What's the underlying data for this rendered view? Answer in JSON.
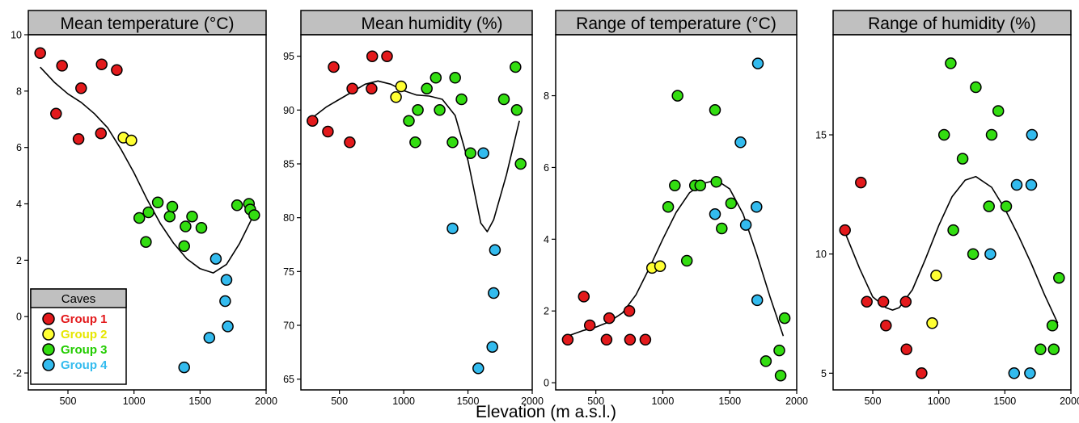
{
  "figure": {
    "xlabel": "Elevation (m a.s.l.)",
    "legend": {
      "title": "Caves",
      "entries": [
        {
          "label": "Group 1",
          "color": "#e31a1c"
        },
        {
          "label": "Group 2",
          "color": "#ffff33"
        },
        {
          "label": "Group 3",
          "color": "#33dd11"
        },
        {
          "label": "Group 4",
          "color": "#33bbee"
        }
      ]
    }
  },
  "colors": {
    "g1": "#e31a1c",
    "g2": "#ffff33",
    "g3": "#33dd11",
    "g4": "#33bbee",
    "header": "#c0c0c0",
    "smooth_line": "#000000"
  },
  "chart_data": [
    {
      "type": "scatter",
      "title": "Mean temperature (°C)",
      "xlabel": "Elevation (m a.s.l.)",
      "xlim": [
        200,
        2000
      ],
      "ylim": [
        -2.6,
        10
      ],
      "xticks": [
        500,
        1000,
        1500,
        2000
      ],
      "xtick_labels": [
        "500",
        "1000",
        "1500",
        "2000"
      ],
      "yticks": [
        -2,
        0,
        2,
        4,
        6,
        8,
        10
      ],
      "ytick_labels": [
        "-2",
        "0",
        "2",
        "4",
        "6",
        "8",
        "10"
      ],
      "points": [
        {
          "x": 290,
          "y": 9.35,
          "group": "g1"
        },
        {
          "x": 410,
          "y": 7.2,
          "group": "g1"
        },
        {
          "x": 455,
          "y": 8.9,
          "group": "g1"
        },
        {
          "x": 580,
          "y": 6.3,
          "group": "g1"
        },
        {
          "x": 600,
          "y": 8.1,
          "group": "g1"
        },
        {
          "x": 750,
          "y": 6.5,
          "group": "g1"
        },
        {
          "x": 755,
          "y": 8.95,
          "group": "g1"
        },
        {
          "x": 870,
          "y": 8.75,
          "group": "g1"
        },
        {
          "x": 920,
          "y": 6.35,
          "group": "g2"
        },
        {
          "x": 980,
          "y": 6.25,
          "group": "g2"
        },
        {
          "x": 1040,
          "y": 3.5,
          "group": "g3"
        },
        {
          "x": 1090,
          "y": 2.65,
          "group": "g3"
        },
        {
          "x": 1110,
          "y": 3.7,
          "group": "g3"
        },
        {
          "x": 1180,
          "y": 4.05,
          "group": "g3"
        },
        {
          "x": 1270,
          "y": 3.55,
          "group": "g3"
        },
        {
          "x": 1290,
          "y": 3.9,
          "group": "g3"
        },
        {
          "x": 1380,
          "y": 2.5,
          "group": "g3"
        },
        {
          "x": 1390,
          "y": 3.2,
          "group": "g3"
        },
        {
          "x": 1440,
          "y": 3.55,
          "group": "g3"
        },
        {
          "x": 1510,
          "y": 3.15,
          "group": "g3"
        },
        {
          "x": 1780,
          "y": 3.95,
          "group": "g3"
        },
        {
          "x": 1870,
          "y": 4.0,
          "group": "g3"
        },
        {
          "x": 1880,
          "y": 3.8,
          "group": "g3"
        },
        {
          "x": 1910,
          "y": 3.6,
          "group": "g3"
        },
        {
          "x": 1380,
          "y": -1.8,
          "group": "g4"
        },
        {
          "x": 1570,
          "y": -0.75,
          "group": "g4"
        },
        {
          "x": 1620,
          "y": 2.05,
          "group": "g4"
        },
        {
          "x": 1690,
          "y": 0.55,
          "group": "g4"
        },
        {
          "x": 1700,
          "y": 1.3,
          "group": "g4"
        },
        {
          "x": 1710,
          "y": -0.35,
          "group": "g4"
        }
      ],
      "smooth": [
        [
          290,
          8.85
        ],
        [
          400,
          8.3
        ],
        [
          500,
          7.9
        ],
        [
          600,
          7.6
        ],
        [
          700,
          7.2
        ],
        [
          800,
          6.7
        ],
        [
          900,
          5.95
        ],
        [
          1000,
          5.1
        ],
        [
          1100,
          4.15
        ],
        [
          1200,
          3.3
        ],
        [
          1300,
          2.6
        ],
        [
          1400,
          2.05
        ],
        [
          1500,
          1.7
        ],
        [
          1600,
          1.55
        ],
        [
          1700,
          1.85
        ],
        [
          1800,
          2.6
        ],
        [
          1900,
          3.55
        ]
      ]
    },
    {
      "type": "scatter",
      "title": "Mean humidity (%)",
      "xlabel": "Elevation (m a.s.l.)",
      "xlim": [
        200,
        2000
      ],
      "ylim": [
        64,
        97
      ],
      "xticks": [
        500,
        1000,
        1500,
        2000
      ],
      "xtick_labels": [
        "500",
        "1000",
        "1500",
        "2000"
      ],
      "yticks": [
        65,
        70,
        75,
        80,
        85,
        90,
        95
      ],
      "ytick_labels": [
        "65",
        "70",
        "75",
        "80",
        "85",
        "90",
        "95"
      ],
      "points": [
        {
          "x": 290,
          "y": 89,
          "group": "g1"
        },
        {
          "x": 410,
          "y": 88,
          "group": "g1"
        },
        {
          "x": 455,
          "y": 94,
          "group": "g1"
        },
        {
          "x": 580,
          "y": 87,
          "group": "g1"
        },
        {
          "x": 600,
          "y": 92,
          "group": "g1"
        },
        {
          "x": 750,
          "y": 92,
          "group": "g1"
        },
        {
          "x": 755,
          "y": 95,
          "group": "g1"
        },
        {
          "x": 870,
          "y": 95,
          "group": "g1"
        },
        {
          "x": 940,
          "y": 91.2,
          "group": "g2"
        },
        {
          "x": 980,
          "y": 92.2,
          "group": "g2"
        },
        {
          "x": 1040,
          "y": 89,
          "group": "g3"
        },
        {
          "x": 1090,
          "y": 87,
          "group": "g3"
        },
        {
          "x": 1110,
          "y": 90,
          "group": "g3"
        },
        {
          "x": 1180,
          "y": 92,
          "group": "g3"
        },
        {
          "x": 1250,
          "y": 93,
          "group": "g3"
        },
        {
          "x": 1280,
          "y": 90,
          "group": "g3"
        },
        {
          "x": 1380,
          "y": 87,
          "group": "g3"
        },
        {
          "x": 1400,
          "y": 93,
          "group": "g3"
        },
        {
          "x": 1450,
          "y": 91,
          "group": "g3"
        },
        {
          "x": 1520,
          "y": 86,
          "group": "g3"
        },
        {
          "x": 1780,
          "y": 91,
          "group": "g3"
        },
        {
          "x": 1870,
          "y": 94,
          "group": "g3"
        },
        {
          "x": 1880,
          "y": 90,
          "group": "g3"
        },
        {
          "x": 1910,
          "y": 85,
          "group": "g3"
        },
        {
          "x": 1380,
          "y": 79,
          "group": "g4"
        },
        {
          "x": 1580,
          "y": 66,
          "group": "g4"
        },
        {
          "x": 1620,
          "y": 86,
          "group": "g4"
        },
        {
          "x": 1690,
          "y": 68,
          "group": "g4"
        },
        {
          "x": 1700,
          "y": 73,
          "group": "g4"
        },
        {
          "x": 1710,
          "y": 77,
          "group": "g4"
        }
      ],
      "smooth": [
        [
          290,
          89.3
        ],
        [
          400,
          90.3
        ],
        [
          500,
          91.0
        ],
        [
          600,
          91.7
        ],
        [
          700,
          92.4
        ],
        [
          800,
          92.7
        ],
        [
          900,
          92.4
        ],
        [
          1000,
          91.8
        ],
        [
          1100,
          91.4
        ],
        [
          1200,
          91.3
        ],
        [
          1300,
          91.0
        ],
        [
          1400,
          89.5
        ],
        [
          1500,
          85.3
        ],
        [
          1600,
          79.5
        ],
        [
          1650,
          78.7
        ],
        [
          1700,
          79.8
        ],
        [
          1800,
          84.0
        ],
        [
          1900,
          89.0
        ]
      ]
    },
    {
      "type": "scatter",
      "title": "Range of temperature (°C)",
      "xlabel": "Elevation (m a.s.l.)",
      "xlim": [
        200,
        2000
      ],
      "ylim": [
        -0.2,
        9.7
      ],
      "xticks": [
        500,
        1000,
        1500,
        2000
      ],
      "xtick_labels": [
        "500",
        "1000",
        "1500",
        "2000"
      ],
      "yticks": [
        0,
        2,
        4,
        6,
        8
      ],
      "ytick_labels": [
        "0",
        "2",
        "4",
        "6",
        "8"
      ],
      "points": [
        {
          "x": 290,
          "y": 1.2,
          "group": "g1"
        },
        {
          "x": 410,
          "y": 2.4,
          "group": "g1"
        },
        {
          "x": 455,
          "y": 1.6,
          "group": "g1"
        },
        {
          "x": 580,
          "y": 1.2,
          "group": "g1"
        },
        {
          "x": 600,
          "y": 1.8,
          "group": "g1"
        },
        {
          "x": 750,
          "y": 2.0,
          "group": "g1"
        },
        {
          "x": 755,
          "y": 1.2,
          "group": "g1"
        },
        {
          "x": 870,
          "y": 1.2,
          "group": "g1"
        },
        {
          "x": 920,
          "y": 3.2,
          "group": "g2"
        },
        {
          "x": 980,
          "y": 3.25,
          "group": "g2"
        },
        {
          "x": 1040,
          "y": 4.9,
          "group": "g3"
        },
        {
          "x": 1090,
          "y": 5.5,
          "group": "g3"
        },
        {
          "x": 1110,
          "y": 8.0,
          "group": "g3"
        },
        {
          "x": 1180,
          "y": 3.4,
          "group": "g3"
        },
        {
          "x": 1240,
          "y": 5.5,
          "group": "g3"
        },
        {
          "x": 1280,
          "y": 5.5,
          "group": "g3"
        },
        {
          "x": 1390,
          "y": 7.6,
          "group": "g3"
        },
        {
          "x": 1400,
          "y": 5.6,
          "group": "g3"
        },
        {
          "x": 1440,
          "y": 4.3,
          "group": "g3"
        },
        {
          "x": 1510,
          "y": 5.0,
          "group": "g3"
        },
        {
          "x": 1770,
          "y": 0.6,
          "group": "g3"
        },
        {
          "x": 1870,
          "y": 0.9,
          "group": "g3"
        },
        {
          "x": 1880,
          "y": 0.2,
          "group": "g3"
        },
        {
          "x": 1910,
          "y": 1.8,
          "group": "g3"
        },
        {
          "x": 1390,
          "y": 4.7,
          "group": "g4"
        },
        {
          "x": 1580,
          "y": 6.7,
          "group": "g4"
        },
        {
          "x": 1620,
          "y": 4.4,
          "group": "g4"
        },
        {
          "x": 1700,
          "y": 4.9,
          "group": "g4"
        },
        {
          "x": 1705,
          "y": 2.3,
          "group": "g4"
        },
        {
          "x": 1710,
          "y": 8.9,
          "group": "g4"
        }
      ],
      "smooth": [
        [
          290,
          1.3
        ],
        [
          400,
          1.45
        ],
        [
          500,
          1.55
        ],
        [
          600,
          1.7
        ],
        [
          700,
          1.95
        ],
        [
          800,
          2.45
        ],
        [
          900,
          3.2
        ],
        [
          1000,
          4.0
        ],
        [
          1100,
          4.75
        ],
        [
          1200,
          5.3
        ],
        [
          1300,
          5.55
        ],
        [
          1400,
          5.65
        ],
        [
          1500,
          5.4
        ],
        [
          1600,
          4.7
        ],
        [
          1700,
          3.6
        ],
        [
          1800,
          2.4
        ],
        [
          1900,
          1.3
        ]
      ]
    },
    {
      "type": "scatter",
      "title": "Range of humidity (%)",
      "xlabel": "Elevation (m a.s.l.)",
      "xlim": [
        200,
        2000
      ],
      "ylim": [
        4.3,
        19.2
      ],
      "xticks": [
        500,
        1000,
        1500,
        2000
      ],
      "xtick_labels": [
        "500",
        "1000",
        "1500",
        "2000"
      ],
      "yticks": [
        5,
        10,
        15
      ],
      "ytick_labels": [
        "5",
        "10",
        "15"
      ],
      "points": [
        {
          "x": 290,
          "y": 11,
          "group": "g1"
        },
        {
          "x": 410,
          "y": 13,
          "group": "g1"
        },
        {
          "x": 455,
          "y": 8,
          "group": "g1"
        },
        {
          "x": 580,
          "y": 8,
          "group": "g1"
        },
        {
          "x": 600,
          "y": 7,
          "group": "g1"
        },
        {
          "x": 750,
          "y": 8,
          "group": "g1"
        },
        {
          "x": 755,
          "y": 6,
          "group": "g1"
        },
        {
          "x": 870,
          "y": 5,
          "group": "g1"
        },
        {
          "x": 950,
          "y": 7.1,
          "group": "g2"
        },
        {
          "x": 980,
          "y": 9.1,
          "group": "g2"
        },
        {
          "x": 1040,
          "y": 15,
          "group": "g3"
        },
        {
          "x": 1090,
          "y": 18,
          "group": "g3"
        },
        {
          "x": 1110,
          "y": 11,
          "group": "g3"
        },
        {
          "x": 1180,
          "y": 14,
          "group": "g3"
        },
        {
          "x": 1260,
          "y": 10,
          "group": "g3"
        },
        {
          "x": 1280,
          "y": 17,
          "group": "g3"
        },
        {
          "x": 1380,
          "y": 12,
          "group": "g3"
        },
        {
          "x": 1400,
          "y": 15,
          "group": "g3"
        },
        {
          "x": 1450,
          "y": 16,
          "group": "g3"
        },
        {
          "x": 1510,
          "y": 12,
          "group": "g3"
        },
        {
          "x": 1770,
          "y": 6,
          "group": "g3"
        },
        {
          "x": 1860,
          "y": 7,
          "group": "g3"
        },
        {
          "x": 1870,
          "y": 6,
          "group": "g3"
        },
        {
          "x": 1910,
          "y": 9,
          "group": "g3"
        },
        {
          "x": 1390,
          "y": 10,
          "group": "g4"
        },
        {
          "x": 1570,
          "y": 5,
          "group": "g4"
        },
        {
          "x": 1590,
          "y": 12.9,
          "group": "g4"
        },
        {
          "x": 1690,
          "y": 5,
          "group": "g4"
        },
        {
          "x": 1700,
          "y": 12.9,
          "group": "g4"
        },
        {
          "x": 1705,
          "y": 15,
          "group": "g4"
        }
      ],
      "smooth": [
        [
          290,
          10.9
        ],
        [
          400,
          9.4
        ],
        [
          500,
          8.2
        ],
        [
          600,
          7.75
        ],
        [
          650,
          7.65
        ],
        [
          700,
          7.75
        ],
        [
          800,
          8.5
        ],
        [
          900,
          9.8
        ],
        [
          1000,
          11.2
        ],
        [
          1100,
          12.4
        ],
        [
          1200,
          13.1
        ],
        [
          1280,
          13.25
        ],
        [
          1400,
          12.8
        ],
        [
          1500,
          11.9
        ],
        [
          1600,
          10.8
        ],
        [
          1700,
          9.6
        ],
        [
          1800,
          8.3
        ],
        [
          1900,
          7.1
        ]
      ]
    }
  ]
}
